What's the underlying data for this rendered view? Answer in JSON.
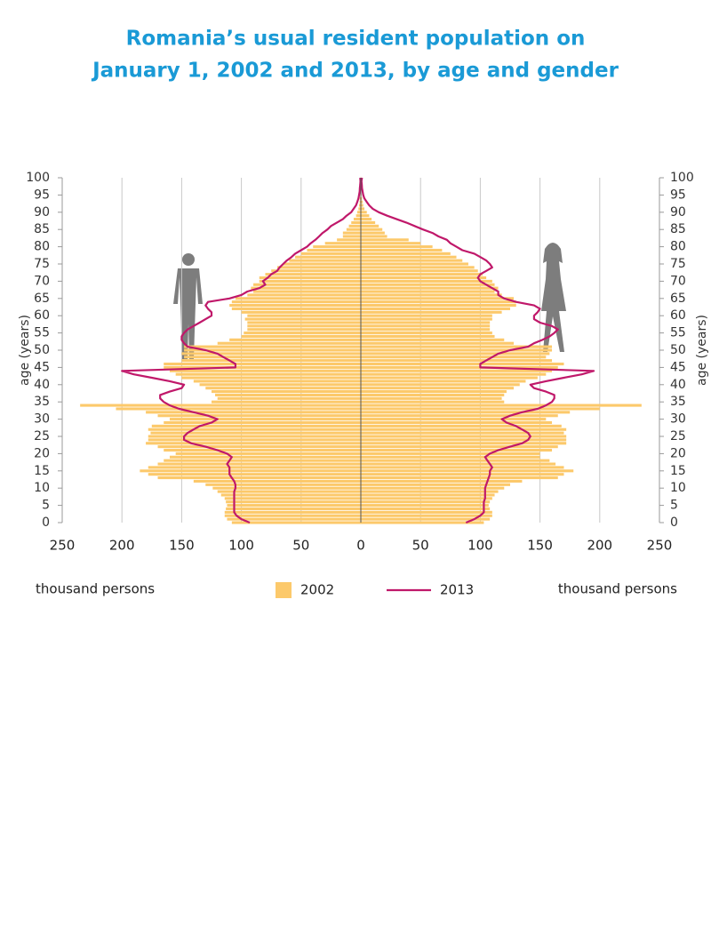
{
  "chart_data": {
    "type": "pyramid",
    "title_lines": [
      "Romania’s usual resident population on",
      "January 1, 2002 and 2013, by age and gender"
    ],
    "ylabel": "age (years)",
    "xlabel": "thousand persons",
    "ages": [
      0,
      1,
      2,
      3,
      4,
      5,
      6,
      7,
      8,
      9,
      10,
      11,
      12,
      13,
      14,
      15,
      16,
      17,
      18,
      19,
      20,
      21,
      22,
      23,
      24,
      25,
      26,
      27,
      28,
      29,
      30,
      31,
      32,
      33,
      34,
      35,
      36,
      37,
      38,
      39,
      40,
      41,
      42,
      43,
      44,
      45,
      46,
      47,
      48,
      49,
      50,
      51,
      52,
      53,
      54,
      55,
      56,
      57,
      58,
      59,
      60,
      61,
      62,
      63,
      64,
      65,
      66,
      67,
      68,
      69,
      70,
      71,
      72,
      73,
      74,
      75,
      76,
      77,
      78,
      79,
      80,
      81,
      82,
      83,
      84,
      85,
      86,
      87,
      88,
      89,
      90,
      91,
      92,
      93,
      94,
      95,
      96,
      97,
      98,
      99,
      100
    ],
    "ylim": [
      0,
      100
    ],
    "yticks": [
      0,
      5,
      10,
      15,
      20,
      25,
      30,
      35,
      40,
      45,
      50,
      55,
      60,
      65,
      70,
      75,
      80,
      85,
      90,
      95,
      100
    ],
    "xlim": [
      -250,
      250
    ],
    "xticks": [
      {
        "value": -250,
        "label": "250"
      },
      {
        "value": -200,
        "label": "200"
      },
      {
        "value": -150,
        "label": "150"
      },
      {
        "value": -100,
        "label": "100"
      },
      {
        "value": -50,
        "label": "50"
      },
      0,
      50,
      100,
      150,
      200,
      250
    ],
    "grid": true,
    "series": [
      {
        "name": "2002",
        "color": "#fcc96b",
        "style": "bar",
        "male": [
          108,
          112,
          114,
          114,
          113,
          112,
          113,
          114,
          117,
          120,
          124,
          130,
          140,
          170,
          178,
          185,
          178,
          170,
          165,
          160,
          155,
          165,
          170,
          180,
          178,
          178,
          176,
          178,
          175,
          165,
          160,
          170,
          180,
          205,
          235,
          125,
          120,
          122,
          125,
          130,
          135,
          140,
          150,
          155,
          160,
          165,
          165,
          150,
          148,
          150,
          148,
          148,
          120,
          110,
          100,
          98,
          95,
          95,
          95,
          97,
          95,
          100,
          108,
          110,
          108,
          105,
          95,
          90,
          92,
          90,
          85,
          85,
          80,
          75,
          70,
          65,
          60,
          55,
          50,
          45,
          40,
          30,
          20,
          15,
          15,
          12,
          10,
          8,
          6,
          4,
          3,
          2,
          1.5,
          1,
          1,
          0.5,
          0.3,
          0.2,
          0.1,
          0.1,
          0.1
        ],
        "female": [
          103,
          108,
          110,
          110,
          108,
          107,
          108,
          110,
          112,
          115,
          120,
          125,
          135,
          165,
          170,
          178,
          170,
          163,
          158,
          150,
          150,
          160,
          165,
          172,
          172,
          172,
          170,
          172,
          168,
          160,
          155,
          165,
          175,
          200,
          235,
          120,
          118,
          120,
          122,
          128,
          133,
          138,
          148,
          155,
          160,
          165,
          170,
          160,
          155,
          158,
          160,
          160,
          128,
          120,
          112,
          110,
          108,
          108,
          108,
          110,
          110,
          118,
          125,
          130,
          130,
          128,
          118,
          112,
          115,
          112,
          110,
          105,
          102,
          98,
          95,
          90,
          85,
          80,
          75,
          68,
          60,
          50,
          40,
          22,
          20,
          18,
          15,
          12,
          9,
          7,
          5,
          3,
          2,
          1.5,
          1,
          0.5,
          0.4,
          0.3,
          0.2,
          0.1,
          0.1
        ]
      },
      {
        "name": "2013",
        "color": "#c0186a",
        "style": "line",
        "male": [
          93,
          100,
          104,
          106,
          106,
          106,
          106,
          106,
          106,
          106,
          105,
          105,
          106,
          108,
          110,
          110,
          110,
          112,
          110,
          108,
          112,
          120,
          130,
          142,
          148,
          148,
          145,
          140,
          135,
          125,
          120,
          128,
          140,
          152,
          160,
          165,
          168,
          168,
          160,
          150,
          148,
          160,
          175,
          190,
          200,
          105,
          105,
          110,
          115,
          120,
          130,
          145,
          148,
          150,
          150,
          148,
          145,
          140,
          135,
          130,
          125,
          125,
          128,
          130,
          128,
          110,
          100,
          95,
          85,
          80,
          82,
          78,
          75,
          70,
          68,
          65,
          62,
          58,
          55,
          50,
          45,
          42,
          38,
          35,
          32,
          28,
          25,
          20,
          15,
          12,
          8,
          6,
          4,
          3,
          2,
          1.5,
          1,
          0.8,
          0.5,
          0.3,
          0.5
        ],
        "female": [
          88,
          95,
          100,
          103,
          103,
          103,
          103,
          104,
          104,
          104,
          104,
          105,
          106,
          107,
          108,
          108,
          110,
          108,
          106,
          104,
          108,
          115,
          125,
          135,
          140,
          142,
          140,
          135,
          130,
          122,
          118,
          125,
          135,
          148,
          155,
          160,
          162,
          162,
          155,
          145,
          142,
          155,
          170,
          185,
          195,
          100,
          100,
          105,
          110,
          115,
          125,
          140,
          145,
          152,
          158,
          162,
          165,
          160,
          150,
          145,
          145,
          148,
          150,
          145,
          130,
          120,
          115,
          115,
          110,
          105,
          100,
          98,
          100,
          105,
          110,
          108,
          105,
          100,
          95,
          85,
          80,
          75,
          72,
          65,
          60,
          52,
          45,
          38,
          30,
          22,
          15,
          10,
          7,
          5,
          3,
          2,
          1.5,
          1,
          0.8,
          0.5,
          1
        ]
      }
    ]
  }
}
